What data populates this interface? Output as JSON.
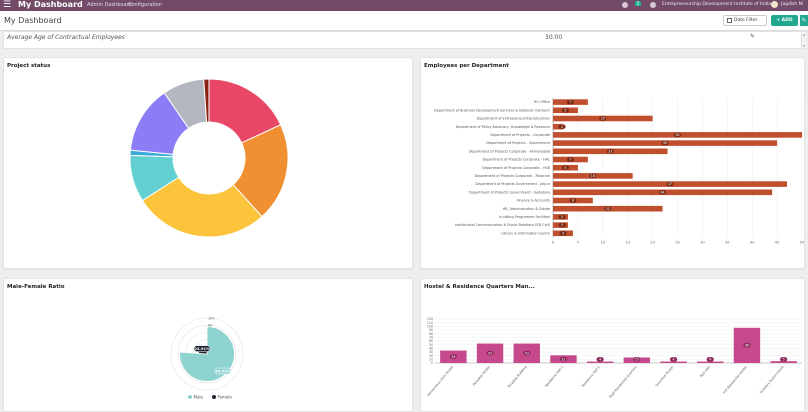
{
  "navbar": {
    "apps_icon": "grid-icon",
    "app_title": "My Dashboard",
    "menu": [
      "Admin Dashboard",
      "Configuration"
    ],
    "chat_count": "2",
    "company": "Entrepreneurship Development Institute of India",
    "user": "Jagdish Ni"
  },
  "control_panel": {
    "title": "My Dashboard",
    "date_filter": "Date Filter",
    "add_label": "+ ADD",
    "edit_icon": "pencil-icon"
  },
  "kpi": {
    "label": "Average Age of Contractual Employees",
    "value": "30.00"
  },
  "project_status": {
    "title": "Project status",
    "chart_data": {
      "type": "pie",
      "labels": [
        "",
        "",
        "",
        "",
        "",
        "",
        "",
        ""
      ],
      "values": [
        17,
        19,
        26,
        9,
        1,
        13,
        8,
        1
      ],
      "colors": [
        "#e84866",
        "#f09032",
        "#fbc43a",
        "#62d0d0",
        "#3caad8",
        "#8a7df6",
        "#b4b7bf",
        "#8a1f14"
      ]
    }
  },
  "employees_per_department": {
    "title": "Employees per Department",
    "chart_data": {
      "type": "bar",
      "orientation": "horizontal",
      "categories": [
        "HO Office",
        "Department of Business Development Services & National Outreach",
        "Department of Entrepreneurship Education",
        "Department of Policy Advocacy, Knowledge & Research",
        "Department of Projects - Corporate",
        "Department of Projects - Government",
        "Department of Projects Corporate - Ahmedabad",
        "Department of Projects Corporate - HAL",
        "Department of Projects Corporate - HSB",
        "Department of Projects Corporate - Mizoram",
        "Department of Projects Government - Jaipur",
        "Department of Projects Government - Vadodara",
        "Finance & Accounts",
        "HR, Administration & Estate",
        "In-sitting Programme Facilities",
        "Institutional Communication & Public Relations (ED Cell)",
        "Library & Information Centre"
      ],
      "values": [
        7,
        5,
        20,
        2,
        50,
        45,
        23,
        7,
        5,
        16,
        47,
        44,
        8,
        22,
        3,
        3,
        4
      ],
      "xlim": [
        0,
        50
      ],
      "xticks": [
        "0",
        "5",
        "10",
        "15",
        "20",
        "25",
        "30",
        "35",
        "40",
        "45",
        "50"
      ],
      "color": "#c04f2d"
    }
  },
  "male_female_ratio": {
    "title": "Male-Female Ratio",
    "chart_data": {
      "type": "pie",
      "labels": [
        "Male",
        "Female"
      ],
      "values": [
        76.09,
        23.91
      ],
      "data_labels": [
        "76.09%",
        "23.91%"
      ],
      "colors": [
        "#8fd3d1",
        "#1e2530"
      ],
      "rlim": [
        0,
        100
      ],
      "rticks": [
        "0",
        "20",
        "40",
        "60",
        "80",
        "100"
      ]
    }
  },
  "hostel_residence": {
    "title": "Hostel & Residence Quarters Man...",
    "chart_data": {
      "type": "bar",
      "categories": [
        "Harmonious Girls Hostel",
        "Paradise Hostel",
        "Paradise Building",
        "Residence Hall 1",
        "Residence Hall 2",
        "Staff Residential Quarters",
        "Sunshine Hostel",
        "Twin Hall",
        "Full Residential Hostel",
        "Scholars Guest House"
      ],
      "values": [
        34,
        53,
        53,
        21,
        4,
        15,
        4,
        4,
        96,
        5
      ],
      "ylim": [
        0,
        120
      ],
      "yticks": [
        "0",
        "10",
        "20",
        "30",
        "40",
        "50",
        "60",
        "70",
        "80",
        "90",
        "100",
        "110",
        "120"
      ],
      "color": "#c6498c"
    }
  }
}
